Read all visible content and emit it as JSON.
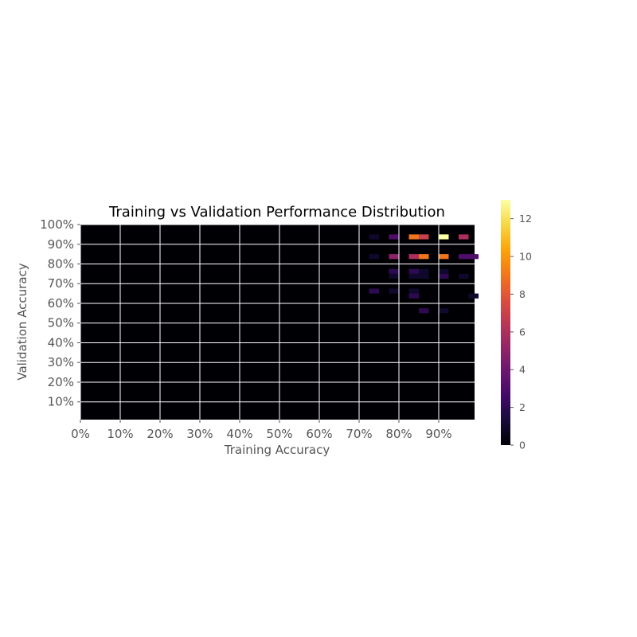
{
  "chart_data": {
    "type": "heatmap",
    "title": "Training vs Validation Performance Distribution",
    "xlabel": "Training Accuracy",
    "ylabel": "Validation Accuracy",
    "x_tick_labels": [
      "0%",
      "10%",
      "20%",
      "30%",
      "40%",
      "50%",
      "60%",
      "70%",
      "80%",
      "90%"
    ],
    "x_tick_values": [
      0,
      10,
      20,
      30,
      40,
      50,
      60,
      70,
      80,
      90
    ],
    "y_tick_labels": [
      "10%",
      "20%",
      "30%",
      "40%",
      "50%",
      "60%",
      "70%",
      "80%",
      "90%",
      "100%"
    ],
    "y_tick_values": [
      10,
      20,
      30,
      40,
      50,
      60,
      70,
      80,
      90,
      100
    ],
    "xlim": [
      0,
      99
    ],
    "ylim": [
      1,
      100
    ],
    "bin_width": 2.5,
    "colormap": "inferno",
    "colorbar_range": [
      0,
      13
    ],
    "colorbar_ticks": [
      "0",
      "2",
      "4",
      "6",
      "8",
      "10",
      "12"
    ],
    "colorbar_tick_values": [
      0,
      2,
      4,
      6,
      8,
      10,
      12
    ],
    "grid": true,
    "cells": [
      {
        "x": 73.75,
        "y": 93.75,
        "count": 1
      },
      {
        "x": 78.75,
        "y": 93.75,
        "count": 3
      },
      {
        "x": 83.75,
        "y": 93.75,
        "count": 9
      },
      {
        "x": 86.25,
        "y": 93.75,
        "count": 7
      },
      {
        "x": 91.25,
        "y": 93.75,
        "count": 13
      },
      {
        "x": 96.25,
        "y": 93.75,
        "count": 6
      },
      {
        "x": 73.75,
        "y": 83.75,
        "count": 1
      },
      {
        "x": 78.75,
        "y": 83.75,
        "count": 5
      },
      {
        "x": 83.75,
        "y": 83.75,
        "count": 6
      },
      {
        "x": 86.25,
        "y": 83.75,
        "count": 9
      },
      {
        "x": 91.25,
        "y": 83.75,
        "count": 9
      },
      {
        "x": 96.25,
        "y": 83.75,
        "count": 3
      },
      {
        "x": 98.75,
        "y": 83.75,
        "count": 3
      },
      {
        "x": 78.75,
        "y": 76.25,
        "count": 2
      },
      {
        "x": 83.75,
        "y": 76.25,
        "count": 2
      },
      {
        "x": 86.25,
        "y": 76.25,
        "count": 1
      },
      {
        "x": 91.25,
        "y": 76.25,
        "count": 1
      },
      {
        "x": 78.75,
        "y": 73.75,
        "count": 1
      },
      {
        "x": 83.75,
        "y": 73.75,
        "count": 1
      },
      {
        "x": 86.25,
        "y": 73.75,
        "count": 1
      },
      {
        "x": 91.25,
        "y": 73.75,
        "count": 2
      },
      {
        "x": 96.25,
        "y": 73.75,
        "count": 1
      },
      {
        "x": 73.75,
        "y": 66.25,
        "count": 2
      },
      {
        "x": 78.75,
        "y": 66.25,
        "count": 1
      },
      {
        "x": 83.75,
        "y": 66.25,
        "count": 1
      },
      {
        "x": 83.75,
        "y": 63.75,
        "count": 2
      },
      {
        "x": 98.75,
        "y": 63.75,
        "count": 1
      },
      {
        "x": 86.25,
        "y": 56.25,
        "count": 2
      },
      {
        "x": 91.25,
        "y": 56.25,
        "count": 1
      }
    ]
  }
}
